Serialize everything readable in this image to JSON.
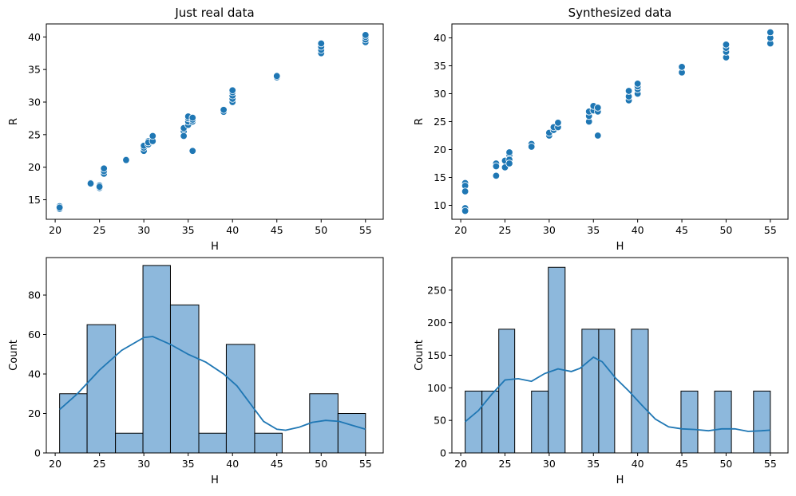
{
  "colors": {
    "point": "#1f77b4",
    "bar_fill": "#8db8dc",
    "bar_edge": "#000000",
    "kde": "#1f77b4"
  },
  "chart_data": [
    {
      "type": "scatter",
      "title": "Just real data",
      "xlabel": "H",
      "ylabel": "R",
      "xlim": [
        19,
        57
      ],
      "ylim": [
        12,
        42
      ],
      "xticks": [
        20,
        25,
        30,
        35,
        40,
        45,
        50,
        55
      ],
      "yticks": [
        15,
        20,
        25,
        30,
        35,
        40
      ],
      "points": [
        [
          20.5,
          14.0
        ],
        [
          20.5,
          13.6
        ],
        [
          20.5,
          13.8
        ],
        [
          24.0,
          17.6
        ],
        [
          24.0,
          17.5
        ],
        [
          25.0,
          17.2
        ],
        [
          25.0,
          16.8
        ],
        [
          25.0,
          17.0
        ],
        [
          25.5,
          19.0
        ],
        [
          25.5,
          19.4
        ],
        [
          25.5,
          19.8
        ],
        [
          28.0,
          21.2
        ],
        [
          28.0,
          21.1
        ],
        [
          30.0,
          22.5
        ],
        [
          30.0,
          23.0
        ],
        [
          30.0,
          23.3
        ],
        [
          30.5,
          23.5
        ],
        [
          30.5,
          24.0
        ],
        [
          30.5,
          23.8
        ],
        [
          31.0,
          24.0
        ],
        [
          31.0,
          24.8
        ],
        [
          34.5,
          25.5
        ],
        [
          34.5,
          26.0
        ],
        [
          34.5,
          24.8
        ],
        [
          35.0,
          26.5
        ],
        [
          35.0,
          27.0
        ],
        [
          35.0,
          27.5
        ],
        [
          35.0,
          27.8
        ],
        [
          35.5,
          27.0
        ],
        [
          35.5,
          27.3
        ],
        [
          35.5,
          27.6
        ],
        [
          35.5,
          22.5
        ],
        [
          39.0,
          28.5
        ],
        [
          39.0,
          28.8
        ],
        [
          40.0,
          30.0
        ],
        [
          40.0,
          30.5
        ],
        [
          40.0,
          31.0
        ],
        [
          40.0,
          31.5
        ],
        [
          40.0,
          31.8
        ],
        [
          45.0,
          33.8
        ],
        [
          45.0,
          34.0
        ],
        [
          50.0,
          37.5
        ],
        [
          50.0,
          38.0
        ],
        [
          50.0,
          38.5
        ],
        [
          50.0,
          39.0
        ],
        [
          55.0,
          39.2
        ],
        [
          55.0,
          39.6
        ],
        [
          55.0,
          40.0
        ],
        [
          55.0,
          40.3
        ]
      ]
    },
    {
      "type": "scatter",
      "title": "Synthesized data",
      "xlabel": "H",
      "ylabel": "R",
      "xlim": [
        19,
        57
      ],
      "ylim": [
        7.5,
        42.5
      ],
      "xticks": [
        20,
        25,
        30,
        35,
        40,
        45,
        50,
        55
      ],
      "yticks": [
        10,
        15,
        20,
        25,
        30,
        35,
        40
      ],
      "points": [
        [
          20.5,
          14.0
        ],
        [
          20.5,
          13.5
        ],
        [
          20.5,
          12.5
        ],
        [
          20.5,
          9.5
        ],
        [
          20.5,
          9.0
        ],
        [
          24.0,
          17.5
        ],
        [
          24.0,
          17.0
        ],
        [
          24.0,
          15.3
        ],
        [
          25.0,
          18.0
        ],
        [
          25.0,
          16.8
        ],
        [
          25.5,
          19.0
        ],
        [
          25.5,
          19.5
        ],
        [
          25.5,
          18.2
        ],
        [
          25.5,
          17.5
        ],
        [
          28.0,
          21.0
        ],
        [
          28.0,
          20.5
        ],
        [
          30.0,
          22.5
        ],
        [
          30.0,
          23.0
        ],
        [
          30.5,
          23.5
        ],
        [
          30.5,
          24.0
        ],
        [
          31.0,
          24.0
        ],
        [
          31.0,
          24.8
        ],
        [
          34.5,
          25.0
        ],
        [
          34.5,
          26.0
        ],
        [
          34.5,
          26.8
        ],
        [
          35.0,
          27.0
        ],
        [
          35.0,
          27.8
        ],
        [
          35.5,
          26.8
        ],
        [
          35.5,
          27.5
        ],
        [
          35.5,
          22.5
        ],
        [
          39.0,
          28.8
        ],
        [
          39.0,
          29.5
        ],
        [
          39.0,
          30.5
        ],
        [
          40.0,
          30.0
        ],
        [
          40.0,
          30.8
        ],
        [
          40.0,
          31.3
        ],
        [
          40.0,
          31.8
        ],
        [
          45.0,
          33.8
        ],
        [
          45.0,
          34.8
        ],
        [
          50.0,
          36.5
        ],
        [
          50.0,
          37.5
        ],
        [
          50.0,
          38.2
        ],
        [
          50.0,
          38.8
        ],
        [
          55.0,
          39.0
        ],
        [
          55.0,
          40.0
        ],
        [
          55.0,
          41.0
        ]
      ]
    },
    {
      "type": "bar",
      "subtype": "histogram",
      "xlabel": "H",
      "ylabel": "Count",
      "xlim": [
        19,
        57
      ],
      "ylim": [
        0,
        99
      ],
      "xticks": [
        20,
        25,
        30,
        35,
        40,
        45,
        50,
        55
      ],
      "yticks": [
        0,
        20,
        40,
        60,
        80
      ],
      "bins": [
        {
          "x0": 20.5,
          "x1": 23.6,
          "value": 30
        },
        {
          "x0": 23.6,
          "x1": 26.8,
          "value": 65
        },
        {
          "x0": 26.8,
          "x1": 29.9,
          "value": 10
        },
        {
          "x0": 29.9,
          "x1": 33.0,
          "value": 95
        },
        {
          "x0": 33.0,
          "x1": 36.2,
          "value": 75
        },
        {
          "x0": 36.2,
          "x1": 39.3,
          "value": 10
        },
        {
          "x0": 39.3,
          "x1": 42.5,
          "value": 55
        },
        {
          "x0": 42.5,
          "x1": 45.6,
          "value": 10
        },
        {
          "x0": 45.6,
          "x1": 48.7,
          "value": 0
        },
        {
          "x0": 48.7,
          "x1": 51.9,
          "value": 30
        },
        {
          "x0": 51.9,
          "x1": 55.0,
          "value": 20
        }
      ],
      "kde": [
        [
          20.5,
          22
        ],
        [
          22.5,
          30
        ],
        [
          25,
          42
        ],
        [
          27.5,
          52
        ],
        [
          30,
          58.5
        ],
        [
          31,
          59
        ],
        [
          33,
          55
        ],
        [
          35,
          50
        ],
        [
          37,
          46
        ],
        [
          39,
          40
        ],
        [
          40.5,
          34
        ],
        [
          42,
          25
        ],
        [
          43.5,
          16
        ],
        [
          45,
          12
        ],
        [
          46,
          11.5
        ],
        [
          47.5,
          13
        ],
        [
          49,
          15.5
        ],
        [
          50.5,
          16.5
        ],
        [
          52,
          16
        ],
        [
          53.5,
          14
        ],
        [
          55,
          12
        ]
      ]
    },
    {
      "type": "bar",
      "subtype": "histogram",
      "xlabel": "H",
      "ylabel": "Count",
      "xlim": [
        19,
        57
      ],
      "ylim": [
        0,
        300
      ],
      "xticks": [
        20,
        25,
        30,
        35,
        40,
        45,
        50,
        55
      ],
      "yticks": [
        0,
        50,
        100,
        150,
        200,
        250
      ],
      "bins": [
        {
          "x0": 20.5,
          "x1": 22.4,
          "value": 95
        },
        {
          "x0": 22.4,
          "x1": 24.3,
          "value": 95
        },
        {
          "x0": 24.3,
          "x1": 26.1,
          "value": 190
        },
        {
          "x0": 28.0,
          "x1": 29.9,
          "value": 95
        },
        {
          "x0": 29.9,
          "x1": 31.8,
          "value": 285
        },
        {
          "x0": 33.7,
          "x1": 35.6,
          "value": 190
        },
        {
          "x0": 35.6,
          "x1": 37.4,
          "value": 190
        },
        {
          "x0": 39.3,
          "x1": 41.2,
          "value": 190
        },
        {
          "x0": 44.9,
          "x1": 46.8,
          "value": 95
        },
        {
          "x0": 48.7,
          "x1": 50.6,
          "value": 95
        },
        {
          "x0": 53.1,
          "x1": 55.0,
          "value": 95
        }
      ],
      "kde": [
        [
          20.5,
          48
        ],
        [
          22,
          65
        ],
        [
          23.5,
          90
        ],
        [
          25,
          112
        ],
        [
          26.5,
          114
        ],
        [
          28,
          110
        ],
        [
          29.5,
          122
        ],
        [
          31,
          129
        ],
        [
          32.5,
          125
        ],
        [
          33.5,
          130
        ],
        [
          35,
          147
        ],
        [
          36,
          140
        ],
        [
          37.5,
          115
        ],
        [
          39,
          95
        ],
        [
          40.5,
          73
        ],
        [
          42,
          52
        ],
        [
          43.5,
          40
        ],
        [
          45,
          37
        ],
        [
          46.5,
          36
        ],
        [
          48,
          34
        ],
        [
          49.5,
          37
        ],
        [
          51,
          37
        ],
        [
          52.5,
          33
        ],
        [
          54,
          34
        ],
        [
          55,
          35
        ]
      ]
    }
  ]
}
